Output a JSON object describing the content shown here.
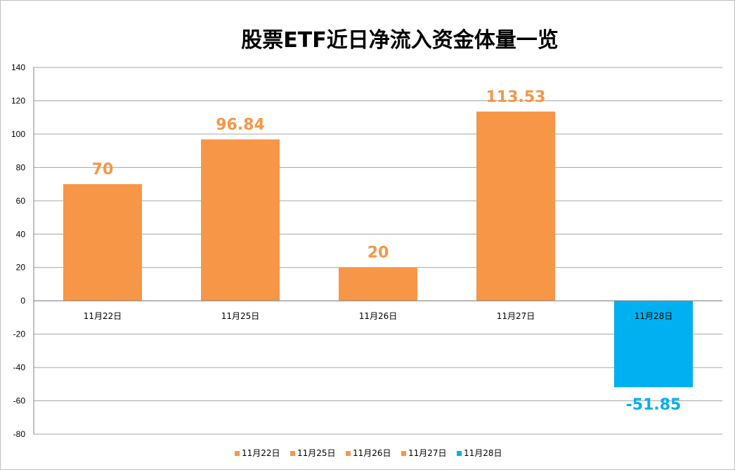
{
  "chart_data": {
    "type": "bar",
    "title": "股票ETF近日净流入资金体量一览",
    "categories": [
      "11月22日",
      "11月25日",
      "11月26日",
      "11月27日",
      "11月28日"
    ],
    "values": [
      70,
      96.84,
      20,
      113.53,
      -51.85
    ],
    "value_labels": [
      "70",
      "96.84",
      "20",
      "113.53",
      "-51.85"
    ],
    "ylim": [
      -80,
      140
    ],
    "yticks": [
      "140",
      "120",
      "100",
      "80",
      "60",
      "40",
      "20",
      "0",
      "-20",
      "-40",
      "-60",
      "-80"
    ],
    "grid": true,
    "legend": "bottom",
    "colors": {
      "positive": "#f79646",
      "negative": "#00b0f0",
      "grid": "#a6a6a6",
      "axis": "#808080"
    }
  }
}
